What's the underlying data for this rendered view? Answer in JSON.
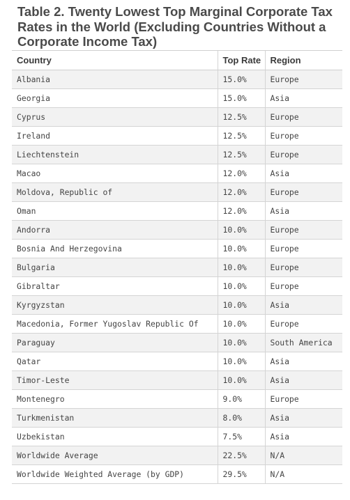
{
  "title": "Table 2. Twenty Lowest Top Marginal Corporate Tax Rates in the World (Excluding Countries Without a Corporate Income Tax)",
  "columns": [
    "Country",
    "Top Rate",
    "Region"
  ],
  "rows": [
    [
      "Albania",
      "15.0%",
      "Europe"
    ],
    [
      "Georgia",
      "15.0%",
      "Asia"
    ],
    [
      "Cyprus",
      "12.5%",
      "Europe"
    ],
    [
      "Ireland",
      "12.5%",
      "Europe"
    ],
    [
      "Liechtenstein",
      "12.5%",
      "Europe"
    ],
    [
      "Macao",
      "12.0%",
      "Asia"
    ],
    [
      "Moldova, Republic of",
      "12.0%",
      "Europe"
    ],
    [
      "Oman",
      "12.0%",
      "Asia"
    ],
    [
      "Andorra",
      "10.0%",
      "Europe"
    ],
    [
      "Bosnia And Herzegovina",
      "10.0%",
      "Europe"
    ],
    [
      "Bulgaria",
      "10.0%",
      "Europe"
    ],
    [
      "Gibraltar",
      "10.0%",
      "Europe"
    ],
    [
      "Kyrgyzstan",
      "10.0%",
      "Asia"
    ],
    [
      "Macedonia, Former Yugoslav Republic Of",
      "10.0%",
      "Europe"
    ],
    [
      "Paraguay",
      "10.0%",
      "South America"
    ],
    [
      "Qatar",
      "10.0%",
      "Asia"
    ],
    [
      "Timor-Leste",
      "10.0%",
      "Asia"
    ],
    [
      "Montenegro",
      "9.0%",
      "Europe"
    ],
    [
      "Turkmenistan",
      "8.0%",
      "Asia"
    ],
    [
      "Uzbekistan",
      "7.5%",
      "Asia"
    ],
    [
      "Worldwide Average",
      "22.5%",
      "N/A"
    ],
    [
      "Worldwide Weighted Average (by GDP)",
      "29.5%",
      "N/A"
    ]
  ]
}
